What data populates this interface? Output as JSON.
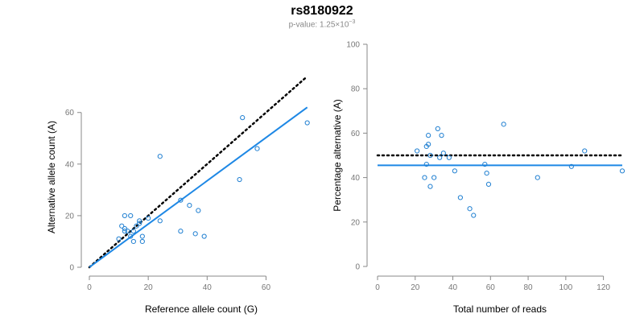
{
  "header": {
    "title": "rs8180922",
    "pvalue_prefix": "p-value: 1.25×10",
    "pvalue_exp": "−3"
  },
  "colors": {
    "points": "#1f7fd1",
    "fit": "#1e88e5",
    "reference": "#000000",
    "axis": "#888888"
  },
  "chart_data": [
    {
      "type": "scatter",
      "xlabel": "Reference allele count (G)",
      "ylabel": "Alternative allele count (A)",
      "xlim": [
        0,
        76
      ],
      "ylim": [
        0,
        70
      ],
      "xticks": [
        0,
        20,
        40,
        60
      ],
      "yticks": [
        0,
        20,
        40,
        60
      ],
      "points": [
        {
          "x": 10,
          "y": 11
        },
        {
          "x": 11,
          "y": 16
        },
        {
          "x": 12,
          "y": 20
        },
        {
          "x": 12,
          "y": 15
        },
        {
          "x": 12,
          "y": 14
        },
        {
          "x": 13,
          "y": 14
        },
        {
          "x": 14,
          "y": 20
        },
        {
          "x": 14,
          "y": 12
        },
        {
          "x": 15,
          "y": 10
        },
        {
          "x": 15,
          "y": 14
        },
        {
          "x": 16,
          "y": 16
        },
        {
          "x": 17,
          "y": 17
        },
        {
          "x": 17,
          "y": 18
        },
        {
          "x": 18,
          "y": 12
        },
        {
          "x": 18,
          "y": 10
        },
        {
          "x": 20,
          "y": 19
        },
        {
          "x": 24,
          "y": 43
        },
        {
          "x": 24,
          "y": 18
        },
        {
          "x": 31,
          "y": 26
        },
        {
          "x": 31,
          "y": 14
        },
        {
          "x": 34,
          "y": 24
        },
        {
          "x": 36,
          "y": 13
        },
        {
          "x": 37,
          "y": 22
        },
        {
          "x": 39,
          "y": 12
        },
        {
          "x": 51,
          "y": 34
        },
        {
          "x": 52,
          "y": 58
        },
        {
          "x": 57,
          "y": 46
        },
        {
          "x": 74,
          "y": 56
        }
      ],
      "reference_line": {
        "style": "dotted",
        "x": [
          0,
          74
        ],
        "y": [
          0,
          74
        ]
      },
      "fit_line": {
        "style": "solid",
        "x": [
          0,
          74
        ],
        "y": [
          0,
          62
        ]
      }
    },
    {
      "type": "scatter",
      "xlabel": "Total number of reads",
      "ylabel": "Percentage alternative (A)",
      "xlim": [
        0,
        130
      ],
      "ylim": [
        0,
        100
      ],
      "xticks": [
        0,
        20,
        40,
        60,
        80,
        100,
        120
      ],
      "yticks": [
        0,
        20,
        40,
        60,
        80,
        100
      ],
      "points": [
        {
          "x": 21,
          "y": 52
        },
        {
          "x": 25,
          "y": 40
        },
        {
          "x": 26,
          "y": 54
        },
        {
          "x": 26,
          "y": 46
        },
        {
          "x": 27,
          "y": 59
        },
        {
          "x": 27,
          "y": 55
        },
        {
          "x": 28,
          "y": 36
        },
        {
          "x": 28,
          "y": 50
        },
        {
          "x": 30,
          "y": 40
        },
        {
          "x": 32,
          "y": 62
        },
        {
          "x": 33,
          "y": 49
        },
        {
          "x": 34,
          "y": 59
        },
        {
          "x": 35,
          "y": 51
        },
        {
          "x": 38,
          "y": 49
        },
        {
          "x": 41,
          "y": 43
        },
        {
          "x": 44,
          "y": 31
        },
        {
          "x": 49,
          "y": 26
        },
        {
          "x": 51,
          "y": 23
        },
        {
          "x": 57,
          "y": 46
        },
        {
          "x": 58,
          "y": 42
        },
        {
          "x": 59,
          "y": 37
        },
        {
          "x": 67,
          "y": 64
        },
        {
          "x": 85,
          "y": 40
        },
        {
          "x": 103,
          "y": 45
        },
        {
          "x": 110,
          "y": 52
        },
        {
          "x": 130,
          "y": 43
        }
      ],
      "reference_line": {
        "style": "dotted",
        "x": [
          0,
          130
        ],
        "y": [
          50,
          50
        ]
      },
      "fit_line": {
        "style": "solid",
        "x": [
          0,
          130
        ],
        "y": [
          45.5,
          45.5
        ]
      }
    }
  ]
}
